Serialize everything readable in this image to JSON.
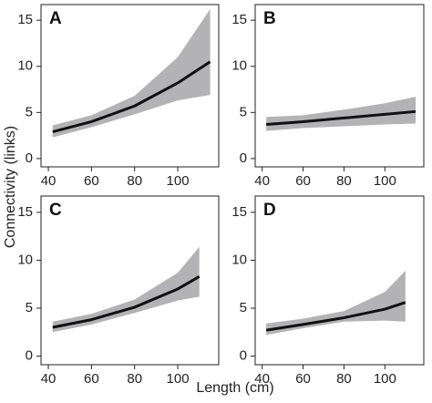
{
  "ylabel": "Connectivity (links)",
  "xlabel": "Length (cm)",
  "chart_data": [
    {
      "type": "line",
      "panel": "A",
      "color": "#111111",
      "band_color": "#b3b3b5",
      "x": [
        42,
        60,
        80,
        100,
        115
      ],
      "values": [
        2.9,
        4.0,
        5.7,
        8.2,
        10.5
      ],
      "lower": [
        2.3,
        3.4,
        4.8,
        6.3,
        6.9
      ],
      "upper": [
        3.6,
        4.7,
        6.8,
        11.0,
        16.2
      ],
      "xlim": [
        36.6,
        119
      ],
      "ylim": [
        -0.9,
        16.7
      ],
      "xticks": [
        40,
        60,
        80,
        100
      ],
      "yticks": [
        0,
        5,
        10,
        15
      ]
    },
    {
      "type": "line",
      "panel": "B",
      "color": "#111111",
      "band_color": "#b3b3b5",
      "x": [
        42,
        60,
        80,
        100,
        115
      ],
      "values": [
        3.7,
        4.0,
        4.4,
        4.8,
        5.1
      ],
      "lower": [
        3.0,
        3.3,
        3.5,
        3.7,
        3.8
      ],
      "upper": [
        4.5,
        4.7,
        5.3,
        6.0,
        6.7
      ],
      "xlim": [
        36.6,
        119
      ],
      "ylim": [
        -0.9,
        16.7
      ],
      "xticks": [
        40,
        60,
        80,
        100
      ],
      "yticks": [
        0,
        5,
        10,
        15
      ]
    },
    {
      "type": "line",
      "panel": "C",
      "color": "#111111",
      "band_color": "#b3b3b5",
      "x": [
        42,
        60,
        80,
        100,
        110
      ],
      "values": [
        3.0,
        3.8,
        5.1,
        7.0,
        8.3
      ],
      "lower": [
        2.5,
        3.3,
        4.5,
        5.8,
        6.2
      ],
      "upper": [
        3.6,
        4.4,
        5.9,
        8.7,
        11.4
      ],
      "xlim": [
        36.6,
        119
      ],
      "ylim": [
        -0.9,
        16.7
      ],
      "xticks": [
        40,
        60,
        80,
        100
      ],
      "yticks": [
        0,
        5,
        10,
        15
      ]
    },
    {
      "type": "line",
      "panel": "D",
      "color": "#111111",
      "band_color": "#b3b3b5",
      "x": [
        42,
        60,
        80,
        100,
        110
      ],
      "values": [
        2.7,
        3.3,
        4.0,
        4.9,
        5.6
      ],
      "lower": [
        2.2,
        2.9,
        3.6,
        3.7,
        3.6
      ],
      "upper": [
        3.4,
        3.9,
        4.7,
        6.7,
        8.9
      ],
      "xlim": [
        36.6,
        119
      ],
      "ylim": [
        -0.9,
        16.7
      ],
      "xticks": [
        40,
        60,
        80,
        100
      ],
      "yticks": [
        0,
        5,
        10,
        15
      ]
    }
  ]
}
